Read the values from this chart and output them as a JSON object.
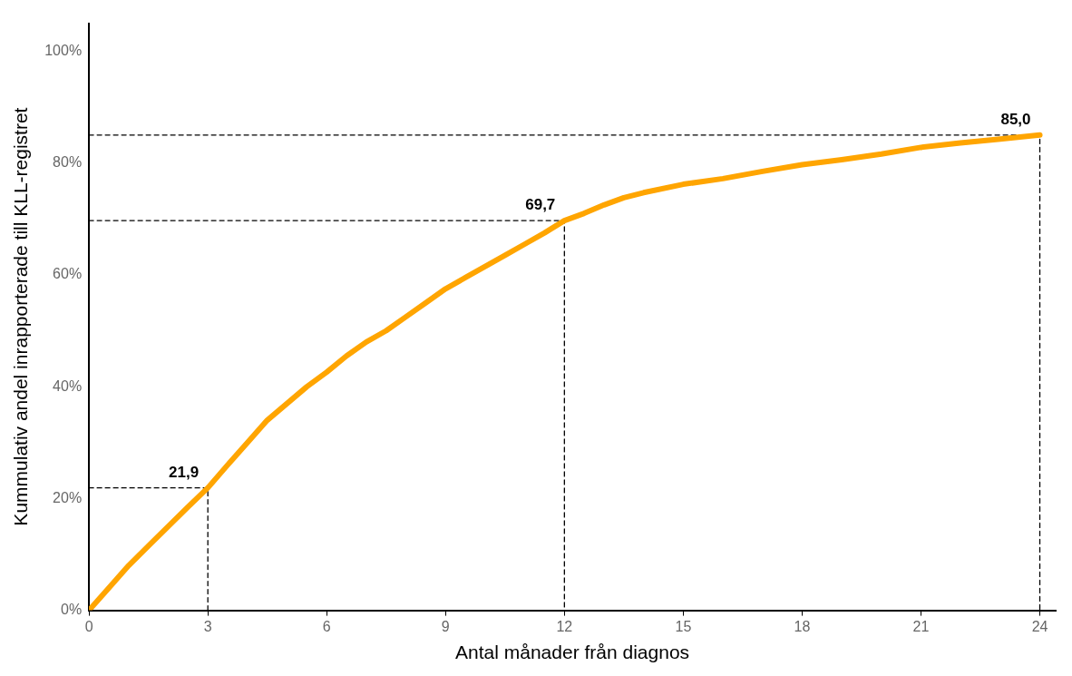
{
  "chart_data": {
    "type": "line",
    "xlabel": "Antal månader från diagnos",
    "ylabel": "Kummulativ andel inrapporterade till KLL-registret",
    "xlim": [
      0,
      24.4
    ],
    "ylim": [
      0,
      105
    ],
    "xticks": [
      0,
      3,
      6,
      9,
      12,
      15,
      18,
      21,
      24
    ],
    "yticks": [
      {
        "value": 0,
        "label": "0%"
      },
      {
        "value": 20,
        "label": "20%"
      },
      {
        "value": 40,
        "label": "40%"
      },
      {
        "value": 60,
        "label": "60%"
      },
      {
        "value": 80,
        "label": "80%"
      },
      {
        "value": 100,
        "label": "100%"
      }
    ],
    "grid": false,
    "legend": false,
    "marker": "none",
    "series": [
      {
        "color": "#ffa500",
        "x": [
          0,
          0.5,
          1,
          1.5,
          2,
          2.5,
          3,
          3.5,
          4,
          4.5,
          5,
          5.5,
          6,
          6.5,
          7,
          7.5,
          8,
          8.5,
          9,
          9.5,
          10,
          10.5,
          11,
          11.5,
          12,
          12.5,
          13,
          13.5,
          14,
          15,
          16,
          17,
          18,
          19,
          20,
          21,
          22,
          23,
          24
        ],
        "values": [
          0,
          4,
          8,
          11.5,
          15,
          18.5,
          21.9,
          26,
          30,
          34,
          37,
          40,
          42.6,
          45.5,
          48,
          50,
          52.5,
          55,
          57.5,
          59.5,
          61.5,
          63.5,
          65.5,
          67.5,
          69.7,
          71,
          72.5,
          73.8,
          74.7,
          76.2,
          77.2,
          78.5,
          79.7,
          80.6,
          81.6,
          82.8,
          83.6,
          84.3,
          85.0
        ]
      },
      {
        "color": "#000000",
        "line_style": "dashed",
        "x": [
          0,
          3,
          3
        ],
        "values": [
          21.9,
          21.9,
          0
        ]
      },
      {
        "color": "#000000",
        "line_style": "dashed",
        "x": [
          0,
          12,
          12
        ],
        "values": [
          69.7,
          69.7,
          0
        ]
      },
      {
        "color": "#000000",
        "line_style": "dashed",
        "x": [
          0,
          24,
          24
        ],
        "values": [
          85.0,
          85.0,
          0
        ]
      }
    ],
    "annotations": [
      {
        "text": "21,9",
        "x": 3,
        "y": 21.9
      },
      {
        "text": "69,7",
        "x": 12,
        "y": 69.7
      },
      {
        "text": "85,0",
        "x": 24,
        "y": 85.0
      }
    ]
  }
}
